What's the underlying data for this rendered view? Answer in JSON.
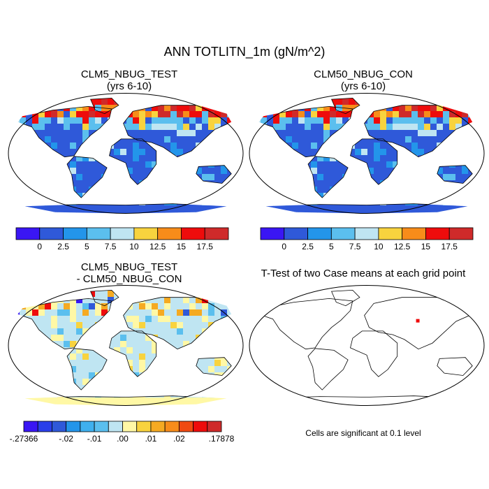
{
  "title": "ANN TOTLITN_1m (gN/m^2)",
  "panels": [
    {
      "line1": "CLM5_NBUG_TEST",
      "line2": "(yrs 6-10)"
    },
    {
      "line1": "CLM50_NBUG_CON",
      "line2": "(yrs 6-10)"
    },
    {
      "line1": "CLM5_NBUG_TEST",
      "line2": "- CLM50_NBUG_CON"
    },
    {
      "line1": "T-Test of two Case means at each grid point",
      "line2": ""
    }
  ],
  "colorbar_abs": {
    "colors": [
      "#3a16f4",
      "#2f59d9",
      "#2395ea",
      "#5bbfee",
      "#bfe5f2",
      "#f8d33e",
      "#f78c1a",
      "#ee0c0c",
      "#cf2a2a"
    ],
    "labels": [
      "0",
      "2.5",
      "5",
      "7.5",
      "10",
      "12.5",
      "15",
      "17.5"
    ]
  },
  "colorbar_diff": {
    "colors": [
      "#3a16f4",
      "#2a3fea",
      "#2f59d9",
      "#2395ea",
      "#3fb0ee",
      "#5bbfee",
      "#bfe5f2",
      "#fff8a5",
      "#f8d33e",
      "#f5aa22",
      "#f78c1a",
      "#f04a12",
      "#ee0c0c",
      "#cf2a2a"
    ],
    "labels": [
      "-.27366",
      "-.02",
      "-.01",
      ".00",
      ".01",
      ".02",
      ".17878"
    ]
  },
  "footnote": "Cells are significant at 0.1 level"
}
